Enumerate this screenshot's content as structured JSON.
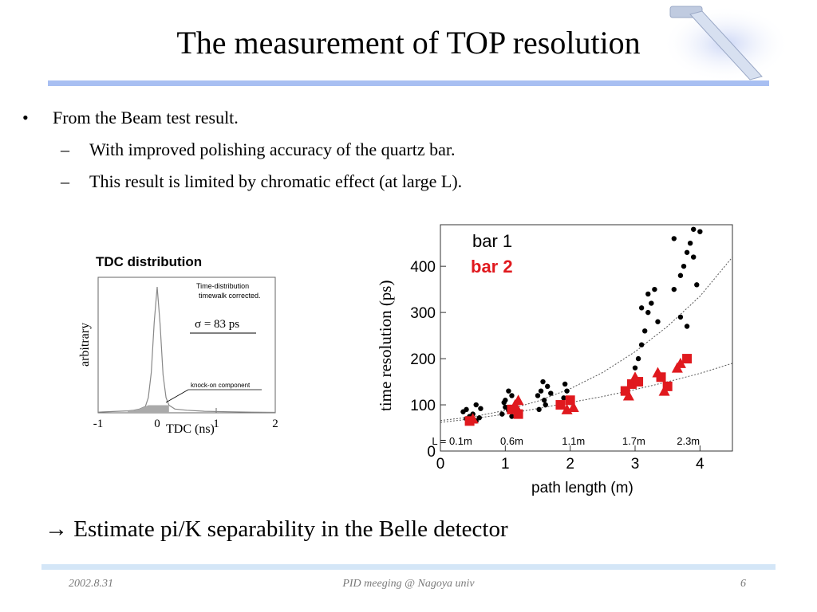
{
  "slide": {
    "title": "The measurement of TOP resolution",
    "bullet": "From the Beam test result.",
    "sub_bullets": [
      "With improved polishing accuracy of the quartz bar.",
      "This result is limited by chromatic effect (at large L)."
    ],
    "bullet_mark": "•",
    "dash_mark": "–",
    "estimate_arrow": "→",
    "estimate": "Estimate pi/K separability in the Belle detector",
    "footer": {
      "date": "2002.8.31",
      "center": "PID meeging @ Nagoya univ",
      "page": "6"
    },
    "colors": {
      "title_rule": "#a8bff2",
      "footer_rule": "#d4e6f7",
      "bar2": "#e0191e"
    },
    "decoration_icon": "quartz-bar-icon"
  },
  "chart_data": [
    {
      "type": "line",
      "title": "TDC distribution",
      "xlabel": "TDC (ns)",
      "ylabel": "arbitrary",
      "xlim": [
        -1,
        2
      ],
      "xticks": [
        "-1",
        "0",
        "1",
        "2"
      ],
      "annotations": [
        "Time-distribution",
        "timewalk corrected.",
        "σ = 83 ps",
        "knock-on component"
      ],
      "series": [
        {
          "x": [
            -1.0,
            -0.75,
            -0.5,
            -0.4,
            -0.3,
            -0.2,
            -0.15,
            -0.1,
            -0.05,
            0.0,
            0.05,
            0.1,
            0.15,
            0.2,
            0.3,
            0.5,
            0.8,
            1.2,
            1.6,
            2.0
          ],
          "y": [
            0.005,
            0.01,
            0.015,
            0.02,
            0.03,
            0.05,
            0.12,
            0.32,
            0.72,
            1.0,
            0.7,
            0.3,
            0.12,
            0.06,
            0.03,
            0.02,
            0.012,
            0.008,
            0.005,
            0.003
          ]
        }
      ]
    },
    {
      "type": "scatter",
      "xlabel": "path length (m)",
      "ylabel": "time resolution (ps)",
      "xlim": [
        0,
        4.5
      ],
      "ylim": [
        0,
        490
      ],
      "xticks": [
        "0",
        "1",
        "2",
        "3",
        "4"
      ],
      "yticks": [
        "0",
        "100",
        "200",
        "300",
        "400"
      ],
      "legend": [
        "bar 1",
        "bar 2"
      ],
      "path_length_labels": [
        "L = 0.1m",
        "0.6m",
        "1.1m",
        "1.7m",
        "2.3m"
      ],
      "series": [
        {
          "name": "bar 1",
          "points": [
            [
              0.35,
              85
            ],
            [
              0.4,
              70
            ],
            [
              0.45,
              75
            ],
            [
              0.5,
              80
            ],
            [
              0.55,
              65
            ],
            [
              0.6,
              72
            ],
            [
              0.62,
              92
            ],
            [
              0.55,
              100
            ],
            [
              0.4,
              90
            ],
            [
              0.95,
              80
            ],
            [
              1.0,
              95
            ],
            [
              1.05,
              88
            ],
            [
              1.1,
              75
            ],
            [
              1.0,
              110
            ],
            [
              1.05,
              130
            ],
            [
              1.1,
              120
            ],
            [
              0.98,
              105
            ],
            [
              1.5,
              120
            ],
            [
              1.55,
              130
            ],
            [
              1.6,
              110
            ],
            [
              1.65,
              140
            ],
            [
              1.7,
              125
            ],
            [
              1.62,
              100
            ],
            [
              1.58,
              150
            ],
            [
              1.52,
              90
            ],
            [
              1.9,
              115
            ],
            [
              1.95,
              130
            ],
            [
              2.0,
              105
            ],
            [
              2.05,
              95
            ],
            [
              1.92,
              145
            ],
            [
              3.05,
              200
            ],
            [
              3.1,
              230
            ],
            [
              3.15,
              260
            ],
            [
              3.2,
              300
            ],
            [
              3.25,
              320
            ],
            [
              3.1,
              310
            ],
            [
              3.3,
              350
            ],
            [
              3.35,
              280
            ],
            [
              3.0,
              180
            ],
            [
              3.2,
              340
            ],
            [
              3.6,
              350
            ],
            [
              3.7,
              380
            ],
            [
              3.75,
              400
            ],
            [
              3.8,
              430
            ],
            [
              3.85,
              450
            ],
            [
              3.9,
              480
            ],
            [
              3.95,
              360
            ],
            [
              3.7,
              290
            ],
            [
              3.8,
              270
            ],
            [
              3.9,
              420
            ],
            [
              3.6,
              460
            ],
            [
              4.0,
              475
            ]
          ]
        },
        {
          "name": "bar 2",
          "points": [
            [
              0.45,
              65
            ],
            [
              0.5,
              70
            ],
            [
              1.1,
              90
            ],
            [
              1.15,
              100
            ],
            [
              1.2,
              80
            ],
            [
              1.2,
              110
            ],
            [
              1.85,
              100
            ],
            [
              1.95,
              90
            ],
            [
              2.0,
              110
            ],
            [
              2.05,
              95
            ],
            [
              2.85,
              130
            ],
            [
              2.9,
              120
            ],
            [
              2.95,
              145
            ],
            [
              3.0,
              160
            ],
            [
              3.05,
              150
            ],
            [
              3.35,
              170
            ],
            [
              3.4,
              160
            ],
            [
              3.45,
              130
            ],
            [
              3.5,
              140
            ],
            [
              3.7,
              190
            ],
            [
              3.8,
              200
            ],
            [
              3.65,
              180
            ]
          ]
        }
      ],
      "fit_curves": [
        {
          "label": "bar 1 fit",
          "x": [
            0,
            0.5,
            1,
            1.5,
            2,
            2.5,
            3,
            3.5,
            4,
            4.5
          ],
          "y": [
            66,
            74,
            88,
            108,
            135,
            170,
            215,
            270,
            335,
            420
          ]
        },
        {
          "label": "bar 2 fit",
          "x": [
            0,
            0.5,
            1,
            1.5,
            2,
            2.5,
            3,
            3.5,
            4,
            4.5
          ],
          "y": [
            62,
            70,
            80,
            92,
            105,
            118,
            133,
            150,
            168,
            190
          ]
        }
      ]
    }
  ]
}
